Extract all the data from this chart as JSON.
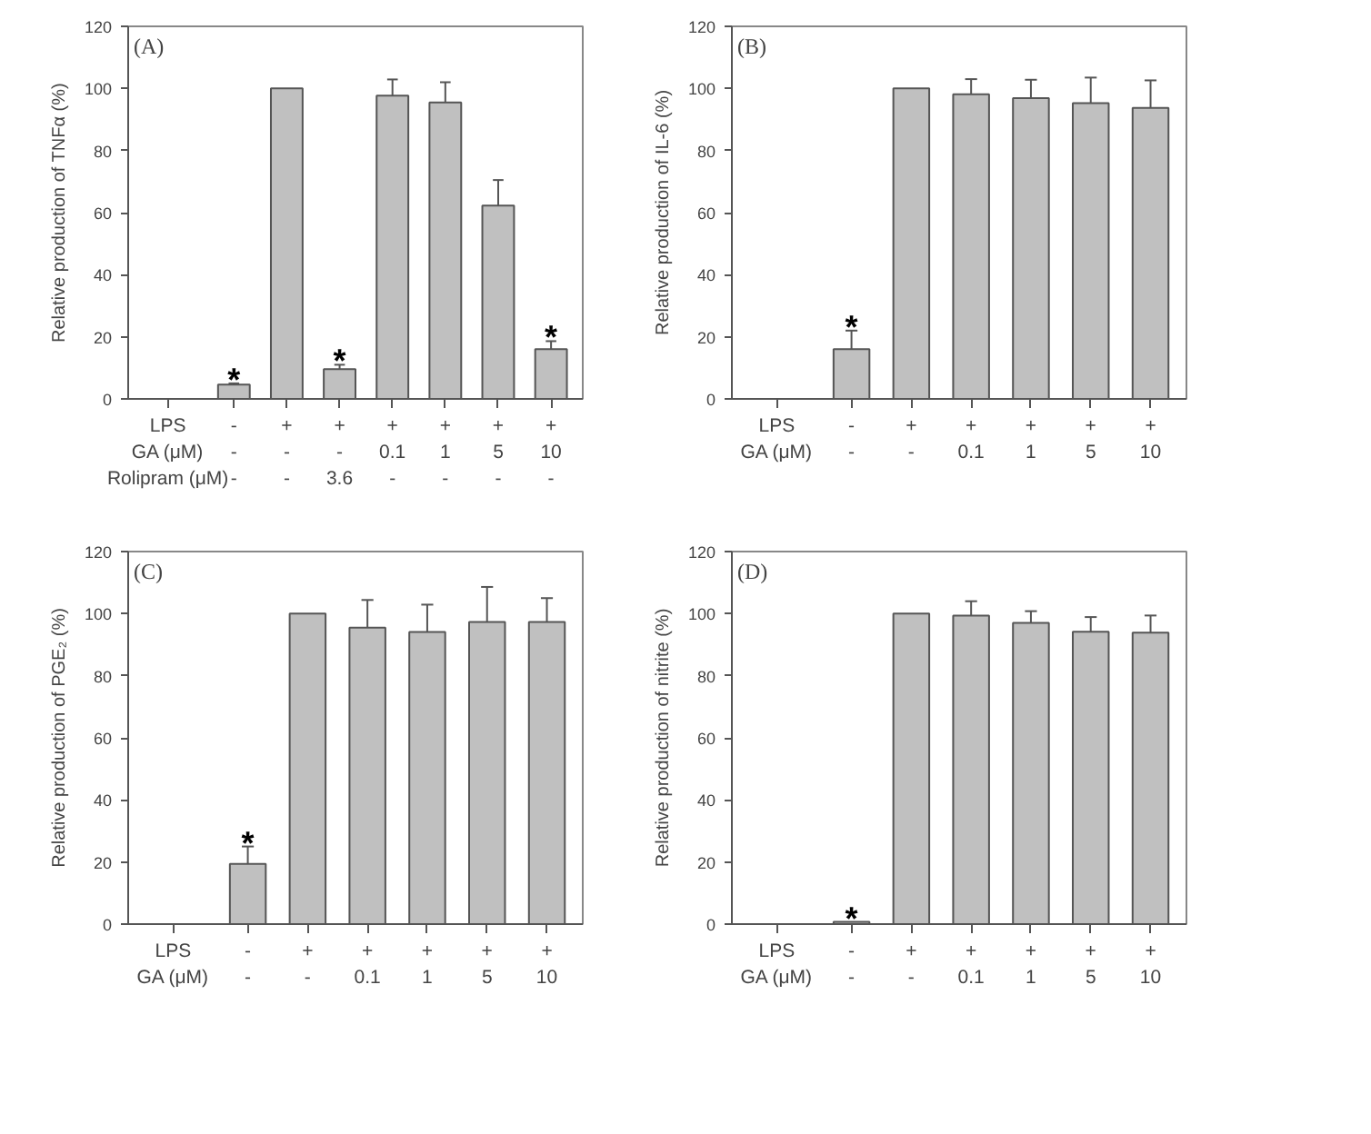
{
  "chart_data": [
    {
      "type": "bar",
      "title": "(A)",
      "ylabel": "Relative production of TNFα (%)",
      "color": "#c0c0c0",
      "ylim": [
        0,
        120
      ],
      "yticks": [
        0,
        20,
        40,
        60,
        80,
        100,
        120
      ],
      "categories": [
        "-\n-\n-",
        "+\n-\n-",
        "+\n-\n3.6",
        "+\n0.1\n-",
        "+\n1\n-",
        "+\n5\n-",
        "+\n10\n-"
      ],
      "values": [
        4.6,
        100,
        9.6,
        97.7,
        95.5,
        62.3,
        16
      ],
      "errors": [
        [
          4.6,
          5
        ],
        null,
        [
          9.6,
          11
        ],
        [
          97.7,
          102.9
        ],
        [
          95.5,
          102
        ],
        [
          62.3,
          70.5
        ],
        [
          16,
          18.6
        ]
      ],
      "annotations": [
        "LPS",
        "GA (μM)",
        "Rolipram (μM)",
        {
          "text": "*",
          "x": "-\n-\n-",
          "y": 5
        },
        {
          "text": "*",
          "x": "+\n-\n3.6",
          "y": 11
        },
        {
          "text": "*",
          "x": "+\n10\n-",
          "y": 18.6
        }
      ]
    },
    {
      "type": "bar",
      "title": "(B)",
      "ylabel": "Relative production of IL-6 (%)",
      "color": "#c0c0c0",
      "ylim": [
        0,
        120
      ],
      "yticks": [
        0,
        20,
        40,
        60,
        80,
        100,
        120
      ],
      "categories": [
        "-\n-",
        "+\n-",
        "+\n0.1",
        "+\n1",
        "+\n5",
        "+\n10"
      ],
      "values": [
        16,
        100,
        98.1,
        96.9,
        95.3,
        93.7
      ],
      "errors": [
        [
          16,
          22
        ],
        null,
        [
          98.1,
          103
        ],
        [
          96.9,
          102.8
        ],
        [
          95.3,
          103.5
        ],
        [
          93.7,
          102.6
        ]
      ],
      "annotations": [
        "LPS",
        "GA (μM)",
        {
          "text": "*",
          "x": "-\n-",
          "y": 22
        }
      ]
    },
    {
      "type": "bar",
      "title": "(C)",
      "ylabel": "Relative production of PGE₂ (%)",
      "color": "#c0c0c0",
      "ylim": [
        0,
        120
      ],
      "yticks": [
        0,
        20,
        40,
        60,
        80,
        100,
        120
      ],
      "categories": [
        "-\n-",
        "+\n-",
        "+\n0.1",
        "+\n1",
        "+\n5",
        "+\n10"
      ],
      "values": [
        19.4,
        100,
        95.5,
        94.1,
        97.3,
        97.3
      ],
      "errors": [
        [
          19.4,
          25
        ],
        null,
        [
          95.5,
          104.4
        ],
        [
          94.1,
          102.9
        ],
        [
          97.3,
          108.6
        ],
        [
          97.3,
          105
        ]
      ],
      "annotations": [
        "LPS",
        "GA (μM)",
        {
          "text": "*",
          "x": "-\n-",
          "y": 25
        }
      ]
    },
    {
      "type": "bar",
      "title": "(D)",
      "ylabel": "Relative production of nitrite (%)",
      "color": "#c0c0c0",
      "ylim": [
        0,
        120
      ],
      "yticks": [
        0,
        20,
        40,
        60,
        80,
        100,
        120
      ],
      "categories": [
        "-\n-",
        "+\n-",
        "+\n0.1",
        "+\n1",
        "+\n5",
        "+\n10"
      ],
      "values": [
        0.7,
        100,
        99.4,
        97,
        94.2,
        93.9
      ],
      "errors": [
        null,
        null,
        [
          99.4,
          104
        ],
        [
          97,
          100.8
        ],
        [
          94.2,
          98.9
        ],
        [
          93.9,
          99.4
        ]
      ],
      "annotations": [
        "LPS",
        "GA (μM)",
        {
          "text": "*",
          "x": "-\n-",
          "y": 0.7
        }
      ]
    }
  ]
}
